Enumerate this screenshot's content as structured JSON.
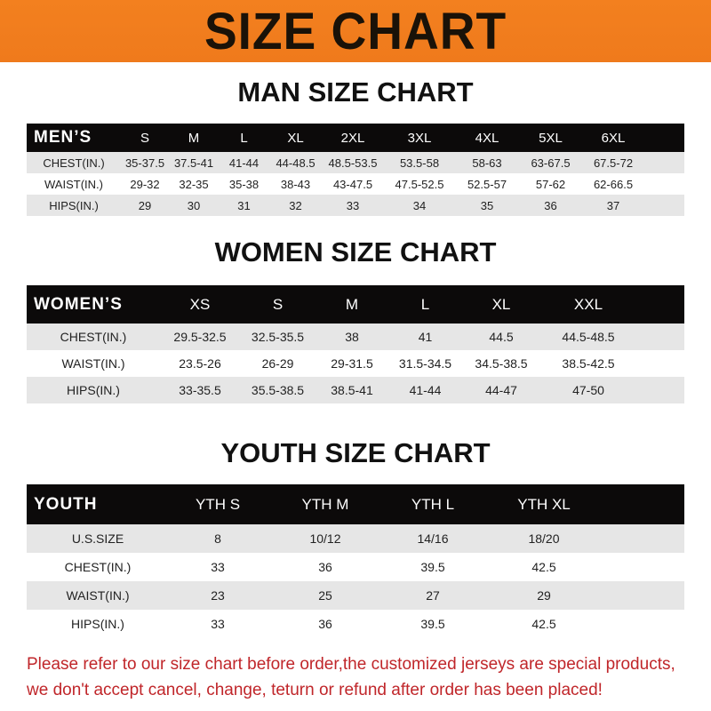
{
  "banner": "SIZE CHART",
  "men": {
    "title": "MAN SIZE CHART",
    "header": [
      "MEN’S",
      "S",
      "M",
      "L",
      "XL",
      "2XL",
      "3XL",
      "4XL",
      "5XL",
      "6XL"
    ],
    "rows": [
      [
        "CHEST(IN.)",
        "35-37.5",
        "37.5-41",
        "41-44",
        "44-48.5",
        "48.5-53.5",
        "53.5-58",
        "58-63",
        "63-67.5",
        "67.5-72"
      ],
      [
        "WAIST(IN.)",
        "29-32",
        "32-35",
        "35-38",
        "38-43",
        "43-47.5",
        "47.5-52.5",
        "52.5-57",
        "57-62",
        "62-66.5"
      ],
      [
        "HIPS(IN.)",
        "29",
        "30",
        "31",
        "32",
        "33",
        "34",
        "35",
        "36",
        "37"
      ]
    ]
  },
  "women": {
    "title": "WOMEN SIZE CHART",
    "header": [
      "WOMEN’S",
      "XS",
      "S",
      "M",
      "L",
      "XL",
      "XXL"
    ],
    "rows": [
      [
        "CHEST(IN.)",
        "29.5-32.5",
        "32.5-35.5",
        "38",
        "41",
        "44.5",
        "44.5-48.5"
      ],
      [
        "WAIST(IN.)",
        "23.5-26",
        "26-29",
        "29-31.5",
        "31.5-34.5",
        "34.5-38.5",
        "38.5-42.5"
      ],
      [
        "HIPS(IN.)",
        "33-35.5",
        "35.5-38.5",
        "38.5-41",
        "41-44",
        "44-47",
        "47-50"
      ]
    ]
  },
  "youth": {
    "title": "YOUTH SIZE CHART",
    "header": [
      "YOUTH",
      "YTH S",
      "YTH M",
      "YTH L",
      "YTH XL"
    ],
    "rows": [
      [
        "U.S.SIZE",
        "8",
        "10/12",
        "14/16",
        "18/20"
      ],
      [
        "CHEST(IN.)",
        "33",
        "36",
        "39.5",
        "42.5"
      ],
      [
        "WAIST(IN.)",
        "23",
        "25",
        "27",
        "29"
      ],
      [
        "HIPS(IN.)",
        "33",
        "36",
        "39.5",
        "42.5"
      ]
    ]
  },
  "notice": [
    "Please refer to our size chart before order,the customized jerseys are special products,",
    "we don't accept cancel, change, teturn or refund after order has been placed!"
  ]
}
